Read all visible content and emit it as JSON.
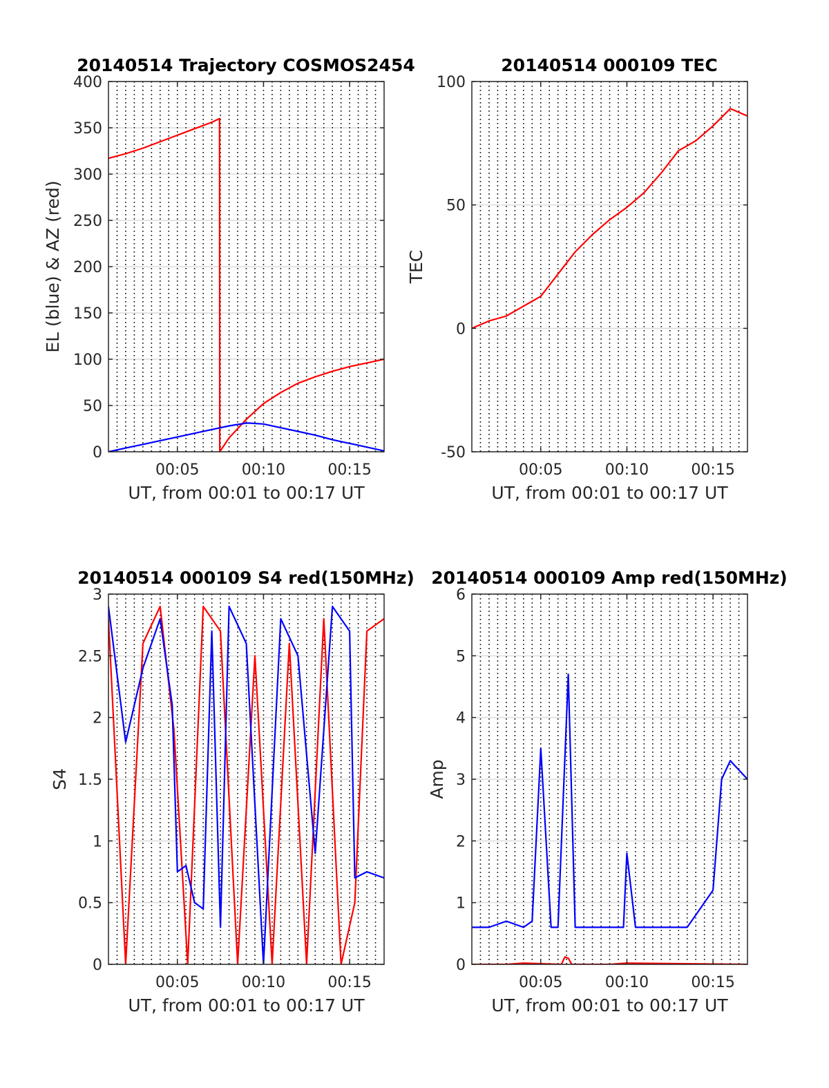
{
  "chart_data": [
    {
      "type": "line",
      "title": "20140514 Trajectory COSMOS2454",
      "xlabel": "UT, from 00:01 to 00:17 UT",
      "ylabel": "EL (blue) & AZ (red)",
      "xlim": [
        1,
        17
      ],
      "ylim": [
        0,
        400
      ],
      "xtick_values": [
        5,
        10,
        15
      ],
      "xtick_labels": [
        "00:05",
        "00:10",
        "00:15"
      ],
      "yticks": [
        0,
        50,
        100,
        150,
        200,
        250,
        300,
        350,
        400
      ],
      "grid": true,
      "series": [
        {
          "color": "#ff0000",
          "x": [
            1,
            2,
            3,
            4,
            5,
            6,
            7,
            7.45,
            7.46,
            8,
            9,
            10,
            11,
            12,
            13,
            14,
            15,
            16,
            17
          ],
          "values": [
            317,
            322,
            328,
            335,
            342,
            349,
            356,
            360,
            0,
            15,
            35,
            52,
            64,
            74,
            81,
            87,
            92,
            96,
            100
          ]
        },
        {
          "color": "#0000ff",
          "x": [
            1,
            2,
            3,
            4,
            5,
            6,
            7,
            8,
            9,
            9.2,
            10,
            11,
            12,
            13,
            14,
            15,
            16,
            17
          ],
          "values": [
            0,
            4,
            8,
            12,
            16,
            20,
            24,
            28,
            31,
            31,
            30,
            26,
            22,
            18,
            13,
            9,
            5,
            1
          ]
        }
      ]
    },
    {
      "type": "line",
      "title": "20140514 000109 TEC",
      "xlabel": "UT, from 00:01 to 00:17 UT",
      "ylabel": "TEC",
      "xlim": [
        1,
        17
      ],
      "ylim": [
        -50,
        100
      ],
      "xtick_values": [
        5,
        10,
        15
      ],
      "xtick_labels": [
        "00:05",
        "00:10",
        "00:15"
      ],
      "yticks": [
        -50,
        0,
        50,
        100
      ],
      "grid": true,
      "series": [
        {
          "color": "#ff0000",
          "x": [
            1,
            2,
            3,
            4,
            5,
            6,
            7,
            8,
            9,
            10,
            11,
            12,
            13,
            14,
            15,
            16,
            17
          ],
          "values": [
            0,
            3,
            5,
            9,
            13,
            22,
            31,
            38,
            44,
            49,
            55,
            63,
            72,
            76,
            82,
            89,
            86
          ]
        }
      ]
    },
    {
      "type": "line",
      "title": "20140514 000109 S4 red(150MHz)",
      "xlabel": "UT, from 00:01 to 00:17 UT",
      "ylabel": "S4",
      "xlim": [
        1,
        17
      ],
      "ylim": [
        0,
        3
      ],
      "xtick_values": [
        5,
        10,
        15
      ],
      "xtick_labels": [
        "00:05",
        "00:10",
        "00:15"
      ],
      "yticks": [
        0,
        0.5,
        1,
        1.5,
        2,
        2.5,
        3
      ],
      "yticklabels": [
        "0",
        "0.5",
        "1",
        "1.5",
        "2",
        "2.5",
        "3"
      ],
      "grid": true,
      "series": [
        {
          "color": "#ff0000",
          "x": [
            1,
            2,
            3,
            4,
            4.8,
            5.6,
            6.5,
            7.5,
            8.5,
            9.5,
            10.5,
            11.5,
            12.5,
            13.5,
            14.5,
            15.3,
            16,
            17
          ],
          "values": [
            2.8,
            0,
            2.6,
            2.9,
            1.9,
            0,
            2.9,
            2.7,
            0,
            2.5,
            0,
            2.6,
            0,
            2.8,
            0,
            0.5,
            2.7,
            2.8
          ]
        },
        {
          "color": "#0000ff",
          "x": [
            1,
            2,
            3,
            4,
            4.7,
            5,
            5.5,
            6,
            6.5,
            7,
            7.5,
            8,
            9,
            10,
            11,
            12,
            13,
            14,
            15,
            15.3,
            16,
            17
          ],
          "values": [
            2.9,
            1.8,
            2.4,
            2.8,
            2.1,
            0.75,
            0.8,
            0.5,
            0.45,
            2.7,
            0.3,
            2.9,
            2.6,
            0,
            2.8,
            2.5,
            0.9,
            2.9,
            2.7,
            0.7,
            0.75,
            0.7
          ]
        }
      ]
    },
    {
      "type": "line",
      "title": "20140514 000109 Amp red(150MHz)",
      "xlabel": "UT, from 00:01 to 00:17 UT",
      "ylabel": "Amp",
      "xlim": [
        1,
        17
      ],
      "ylim": [
        0,
        6
      ],
      "xtick_values": [
        5,
        10,
        15
      ],
      "xtick_labels": [
        "00:05",
        "00:10",
        "00:15"
      ],
      "yticks": [
        0,
        1,
        2,
        3,
        4,
        5,
        6
      ],
      "grid": true,
      "series": [
        {
          "color": "#0000ff",
          "x": [
            1,
            2,
            3,
            4,
            4.5,
            5,
            5.6,
            6,
            6.6,
            7,
            8,
            9,
            9.8,
            10,
            10.5,
            11,
            12,
            13,
            13.5,
            14,
            15,
            15.5,
            16,
            17
          ],
          "values": [
            0.6,
            0.6,
            0.7,
            0.6,
            0.7,
            3.5,
            0.6,
            0.6,
            4.7,
            0.6,
            0.6,
            0.6,
            0.6,
            1.8,
            0.6,
            0.6,
            0.6,
            0.6,
            0.6,
            0.8,
            1.2,
            3,
            3.3,
            3
          ]
        },
        {
          "color": "#ff0000",
          "x": [
            1,
            3,
            4,
            6.2,
            6.4,
            6.6,
            6.8,
            9,
            10,
            13.5,
            17
          ],
          "values": [
            0,
            0,
            0.02,
            0,
            0.12,
            0.1,
            0,
            0,
            0.02,
            0.01,
            0
          ]
        }
      ]
    }
  ]
}
